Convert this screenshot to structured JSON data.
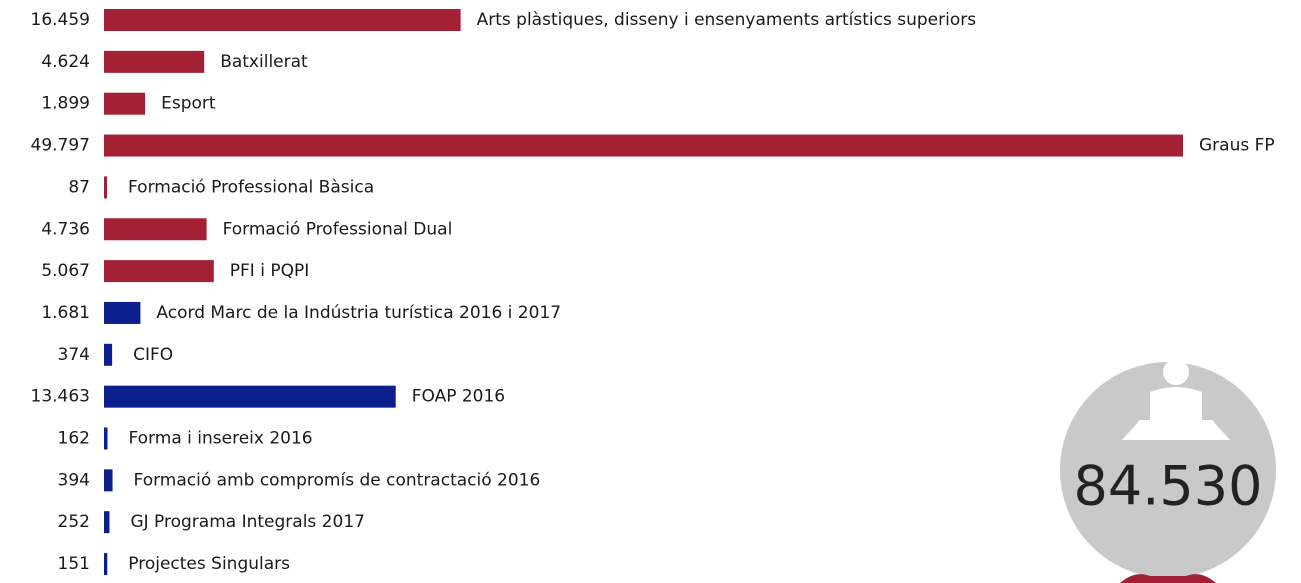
{
  "chart_data": {
    "type": "bar",
    "categories": [
      "Arts plàstiques, disseny i ensenyaments artístics superiors",
      "Batxillerat",
      "Esport",
      "Graus FP",
      "Formació Professional Bàsica",
      "Formació Professional Dual",
      "PFI i PQPI",
      "Acord Marc de la Indústria turística 2016 i 2017",
      "CIFO",
      "FOAP 2016",
      "Forma i insereix 2016",
      "Formació amb compromís de contractació 2016",
      "GJ Programa Integrals 2017",
      "Projectes Singulars"
    ],
    "values": [
      16459,
      4624,
      1899,
      49797,
      87,
      4736,
      5067,
      1681,
      374,
      13463,
      162,
      394,
      252,
      151
    ],
    "value_labels": [
      "16.459",
      "4.624",
      "1.899",
      "49.797",
      "87",
      "4.736",
      "5.067",
      "1.681",
      "374",
      "13.463",
      "162",
      "394",
      "252",
      "151"
    ],
    "colors": [
      "#a32035",
      "#a32035",
      "#a32035",
      "#a32035",
      "#a32035",
      "#a32035",
      "#a32035",
      "#0d1f8c",
      "#0d1f8c",
      "#0d1f8c",
      "#0d1f8c",
      "#0d1f8c",
      "#0d1f8c",
      "#0d1f8c"
    ],
    "total": "84.530"
  }
}
